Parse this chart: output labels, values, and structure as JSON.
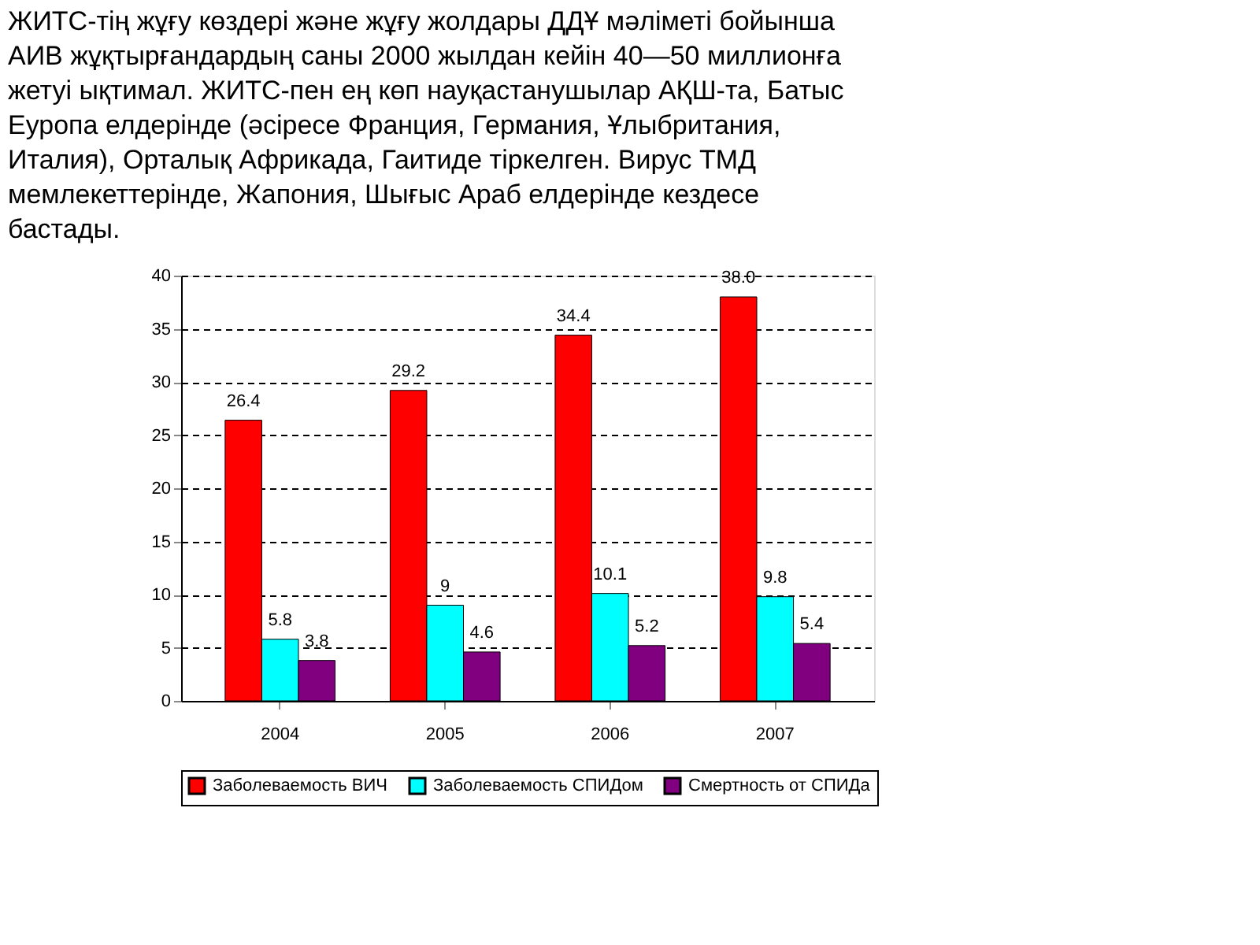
{
  "chart_data": {
    "type": "bar",
    "title": "ЖИТС-тің жұғу көздері және жұғу жолдары ДДҰ мәліметі бойынша АИВ жұқтырғандардың саны 2000 жылдан кейін 40—50 миллионға жетуі ықтимал. ЖИТС-пен ең көп науқастанушылар АҚШ-та, Батыс Еуропа елдерінде (әсіресе Франция, Германия, Ұлыбритания, Италия), Орталық Африкада, Гаитиде тіркелген. Вирус ТМД мемлекеттерінде, Жапония, Шығыс Араб елдерінде кездесе бастады.",
    "categories": [
      "2004",
      "2005",
      "2006",
      "2007"
    ],
    "series": [
      {
        "name": "Заболеваемость ВИЧ",
        "color": "#ff0000",
        "values": [
          26.4,
          29.2,
          34.4,
          38.0
        ],
        "value_labels": [
          "26.4",
          "29.2",
          "34.4",
          "38.0"
        ]
      },
      {
        "name": "Заболеваемость СПИДом",
        "color": "#00ffff",
        "values": [
          5.8,
          9,
          10.1,
          9.8
        ],
        "value_labels": [
          "5.8",
          "9",
          "10.1",
          "9.8"
        ]
      },
      {
        "name": "Смертность от СПИДа",
        "color": "#800080",
        "values": [
          3.8,
          4.6,
          5.2,
          5.4
        ],
        "value_labels": [
          "3.8",
          "4.6",
          "5.2",
          "5.4"
        ]
      }
    ],
    "ylim": [
      0,
      40
    ],
    "yticks": [
      0,
      5,
      10,
      15,
      20,
      25,
      30,
      35,
      40
    ],
    "grid": "y",
    "legend": "bottom"
  }
}
